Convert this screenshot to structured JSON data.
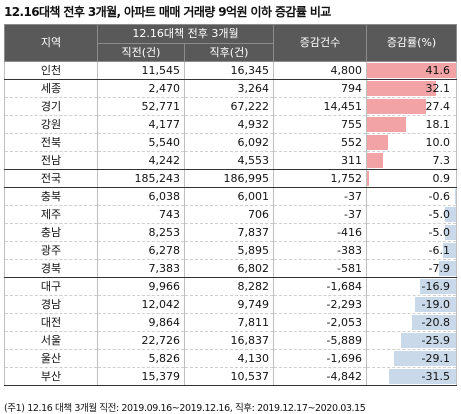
{
  "title": "12.16대책 전후 3개월, 아파트 매매 거래량 9억원 이하 증감률 비교",
  "header": {
    "region": "지역",
    "group": "12.16대책 전후 3개월",
    "before": "직전(건)",
    "after": "직후(건)",
    "change": "증감건수",
    "rate": "증감률(%)"
  },
  "colors": {
    "header_bg": "#595959",
    "positive_bar": "#f2a3a5",
    "negative_bar": "#c9d9ea"
  },
  "chart_data": {
    "type": "table",
    "title": "12.16대책 전후 3개월, 아파트 매매 거래량 9억원 이하 증감률 비교",
    "columns": [
      "지역",
      "직전(건)",
      "직후(건)",
      "증감건수",
      "증감률(%)"
    ],
    "bar_max": 41.6,
    "rows": [
      {
        "region": "인천",
        "before": "11,545",
        "after": "16,345",
        "change": "4,800",
        "rate": "41.6",
        "rate_value": 41.6
      },
      {
        "region": "세종",
        "before": "2,470",
        "after": "3,264",
        "change": "794",
        "rate": "32.1",
        "rate_value": 32.1
      },
      {
        "region": "경기",
        "before": "52,771",
        "after": "67,222",
        "change": "14,451",
        "rate": "27.4",
        "rate_value": 27.4
      },
      {
        "region": "강원",
        "before": "4,177",
        "after": "4,932",
        "change": "755",
        "rate": "18.1",
        "rate_value": 18.1
      },
      {
        "region": "전북",
        "before": "5,540",
        "after": "6,092",
        "change": "552",
        "rate": "10.0",
        "rate_value": 10.0
      },
      {
        "region": "전남",
        "before": "4,242",
        "after": "4,553",
        "change": "311",
        "rate": "7.3",
        "rate_value": 7.3
      },
      {
        "region": "전국",
        "before": "185,243",
        "after": "186,995",
        "change": "1,752",
        "rate": "0.9",
        "rate_value": 0.9
      },
      {
        "region": "충북",
        "before": "6,038",
        "after": "6,001",
        "change": "-37",
        "rate": "-0.6",
        "rate_value": -0.6
      },
      {
        "region": "제주",
        "before": "743",
        "after": "706",
        "change": "-37",
        "rate": "-5.0",
        "rate_value": -5.0
      },
      {
        "region": "충남",
        "before": "8,253",
        "after": "7,837",
        "change": "-416",
        "rate": "-5.0",
        "rate_value": -5.0
      },
      {
        "region": "광주",
        "before": "6,278",
        "after": "5,895",
        "change": "-383",
        "rate": "-6.1",
        "rate_value": -6.1
      },
      {
        "region": "경북",
        "before": "7,383",
        "after": "6,802",
        "change": "-581",
        "rate": "-7.9",
        "rate_value": -7.9
      },
      {
        "region": "대구",
        "before": "9,966",
        "after": "8,282",
        "change": "-1,684",
        "rate": "-16.9",
        "rate_value": -16.9
      },
      {
        "region": "경남",
        "before": "12,042",
        "after": "9,749",
        "change": "-2,293",
        "rate": "-19.0",
        "rate_value": -19.0
      },
      {
        "region": "대전",
        "before": "9,864",
        "after": "7,811",
        "change": "-2,053",
        "rate": "-20.8",
        "rate_value": -20.8
      },
      {
        "region": "서울",
        "before": "22,726",
        "after": "16,837",
        "change": "-5,889",
        "rate": "-25.9",
        "rate_value": -25.9
      },
      {
        "region": "울산",
        "before": "5,826",
        "after": "4,130",
        "change": "-1,696",
        "rate": "-29.1",
        "rate_value": -29.1
      },
      {
        "region": "부산",
        "before": "15,379",
        "after": "10,537",
        "change": "-4,842",
        "rate": "-31.5",
        "rate_value": -31.5
      }
    ]
  },
  "note": "(주1) 12.16 대책 3개월 직전: 2019.09.16~2019.12.16, 직후: 2019.12.17~2020.03.15"
}
